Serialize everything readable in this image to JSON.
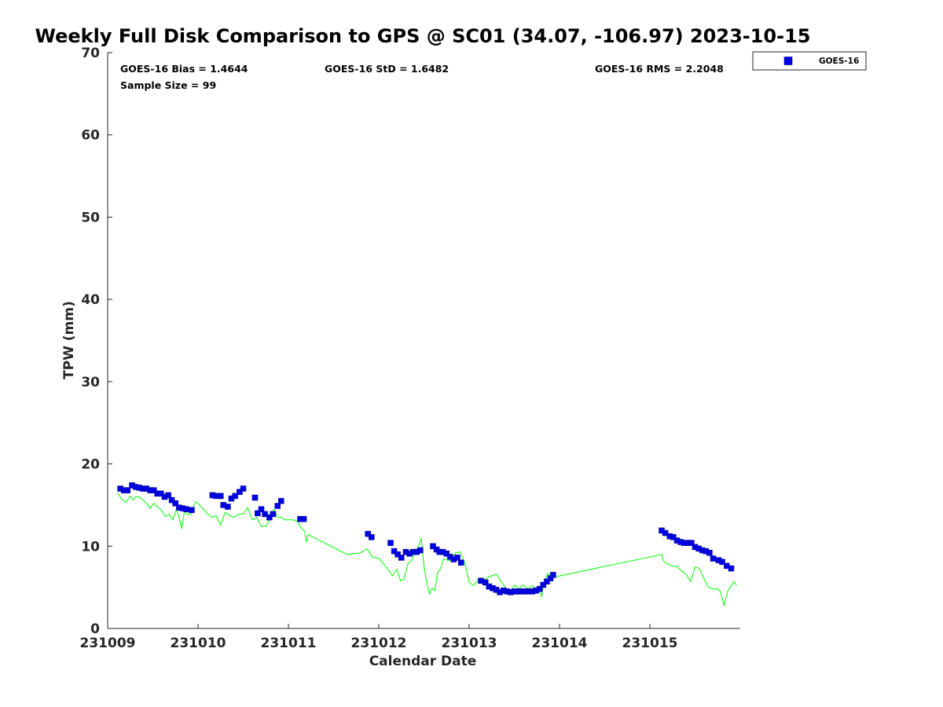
{
  "chart_data": {
    "type": "scatter",
    "title": "Weekly Full Disk Comparison to GPS @ SC01 (34.07, -106.97) 2023-10-15",
    "xlabel": "Calendar Date",
    "ylabel": "TPW (mm)",
    "xlim": [
      231009,
      231016
    ],
    "ylim": [
      0,
      70
    ],
    "x_ticks": [
      231009,
      231010,
      231011,
      231012,
      231013,
      231014,
      231015
    ],
    "x_tick_labels": [
      "231009",
      "231010",
      "231011",
      "231012",
      "231013",
      "231014",
      "231015"
    ],
    "y_ticks": [
      0,
      10,
      20,
      30,
      40,
      50,
      60,
      70
    ],
    "y_tick_labels": [
      "0",
      "10",
      "20",
      "30",
      "40",
      "50",
      "60",
      "70"
    ],
    "grid": false,
    "legend_position": "top-right-outside",
    "stats": {
      "bias": "GOES-16 Bias = 1.4644",
      "std": "GOES-16 StD = 1.6482",
      "rms": "GOES-16 RMS = 2.2048",
      "sample": "Sample Size = 99"
    },
    "series": [
      {
        "name": "GOES-16",
        "marker": "square",
        "color": "#0000e6",
        "x": [
          231009.14,
          231009.18,
          231009.22,
          231009.27,
          231009.31,
          231009.35,
          231009.39,
          231009.43,
          231009.47,
          231009.51,
          231009.55,
          231009.59,
          231009.63,
          231009.67,
          231009.71,
          231009.75,
          231009.79,
          231009.83,
          231009.87,
          231009.93,
          231010.16,
          231010.2,
          231010.25,
          231010.28,
          231010.33,
          231010.37,
          231010.41,
          231010.46,
          231010.5,
          231010.63,
          231010.66,
          231010.7,
          231010.74,
          231010.79,
          231010.83,
          231010.88,
          231010.92,
          231011.13,
          231011.17,
          231011.88,
          231011.92,
          231012.13,
          231012.17,
          231012.21,
          231012.25,
          231012.3,
          231012.34,
          231012.38,
          231012.42,
          231012.46,
          231012.6,
          231012.64,
          231012.67,
          231012.71,
          231012.75,
          231012.79,
          231012.83,
          231012.87,
          231012.91,
          231013.13,
          231013.18,
          231013.22,
          231013.26,
          231013.3,
          231013.34,
          231013.38,
          231013.42,
          231013.46,
          231013.5,
          231013.54,
          231013.58,
          231013.62,
          231013.66,
          231013.7,
          231013.74,
          231013.78,
          231013.82,
          231013.86,
          231013.9,
          231013.93,
          231015.13,
          231015.17,
          231015.22,
          231015.26,
          231015.3,
          231015.34,
          231015.38,
          231015.42,
          231015.46,
          231015.5,
          231015.54,
          231015.58,
          231015.62,
          231015.66,
          231015.7,
          231015.76,
          231015.8,
          231015.85,
          231015.9
        ],
        "y": [
          17.0,
          16.8,
          16.8,
          17.4,
          17.2,
          17.1,
          17.0,
          17.0,
          16.8,
          16.8,
          16.4,
          16.4,
          16.0,
          16.2,
          15.6,
          15.2,
          14.7,
          14.6,
          14.5,
          14.4,
          16.2,
          16.1,
          16.1,
          15.0,
          14.8,
          15.8,
          16.1,
          16.6,
          17.0,
          15.9,
          14.0,
          14.5,
          13.9,
          13.5,
          13.9,
          14.9,
          15.5,
          13.3,
          13.3,
          11.5,
          11.1,
          10.4,
          9.4,
          9.0,
          8.6,
          9.3,
          9.1,
          9.3,
          9.3,
          9.5,
          10.0,
          9.6,
          9.3,
          9.3,
          9.1,
          8.7,
          8.4,
          8.6,
          8.0,
          5.8,
          5.6,
          5.1,
          4.9,
          4.7,
          4.4,
          4.6,
          4.5,
          4.4,
          4.5,
          4.5,
          4.5,
          4.5,
          4.5,
          4.5,
          4.6,
          4.8,
          5.3,
          5.7,
          6.1,
          6.5,
          11.9,
          11.6,
          11.2,
          11.1,
          10.7,
          10.5,
          10.4,
          10.4,
          10.4,
          9.9,
          9.7,
          9.5,
          9.4,
          9.2,
          8.5,
          8.3,
          8.1,
          7.6,
          7.3
        ]
      },
      {
        "name": "",
        "color": "#00ff00",
        "style": "line",
        "x": [
          231009.11,
          231009.15,
          231009.2,
          231009.25,
          231009.28,
          231009.31,
          231009.35,
          231009.39,
          231009.43,
          231009.47,
          231009.51,
          231009.55,
          231009.6,
          231009.64,
          231009.68,
          231009.72,
          231009.76,
          231009.79,
          231009.82,
          231009.85,
          231009.89,
          231009.93,
          231009.97,
          231010.0,
          231010.05,
          231010.1,
          231010.15,
          231010.2,
          231010.25,
          231010.3,
          231010.35,
          231010.4,
          231010.45,
          231010.5,
          231010.55,
          231010.6,
          231010.65,
          231010.7,
          231010.75,
          231010.8,
          231010.84,
          231010.88,
          231010.92,
          231010.96,
          231011.05,
          231011.1,
          231011.14,
          231011.18,
          231011.2,
          231011.22,
          231011.65,
          231011.8,
          231011.87,
          231011.93,
          231012.0,
          231012.05,
          231012.1,
          231012.15,
          231012.2,
          231012.24,
          231012.28,
          231012.32,
          231012.36,
          231012.4,
          231012.44,
          231012.47,
          231012.5,
          231012.53,
          231012.56,
          231012.59,
          231012.62,
          231012.65,
          231012.68,
          231012.72,
          231012.76,
          231012.8,
          231012.85,
          231012.9,
          231012.95,
          231013.0,
          231013.05,
          231013.1,
          231013.15,
          231013.2,
          231013.25,
          231013.3,
          231013.35,
          231013.4,
          231013.45,
          231013.5,
          231013.55,
          231013.6,
          231013.65,
          231013.7,
          231013.75,
          231013.78,
          231013.8,
          231013.83,
          231013.87,
          231013.92,
          231015.13,
          231015.15,
          231015.2,
          231015.25,
          231015.3,
          231015.35,
          231015.4,
          231015.45,
          231015.5,
          231015.55,
          231015.6,
          231015.65,
          231015.7,
          231015.75,
          231015.78,
          231015.82,
          231015.86,
          231015.9,
          231015.93,
          231015.96
        ],
        "y": [
          16.5,
          15.8,
          15.3,
          16.1,
          15.6,
          16.0,
          16.0,
          15.6,
          15.2,
          14.6,
          15.2,
          14.8,
          14.3,
          13.6,
          13.9,
          13.2,
          14.5,
          13.5,
          12.1,
          14.3,
          13.8,
          14.0,
          15.4,
          15.2,
          14.6,
          14.0,
          13.5,
          13.7,
          12.6,
          14.1,
          13.7,
          13.5,
          13.9,
          13.9,
          14.7,
          13.2,
          13.5,
          12.4,
          12.4,
          13.4,
          14.5,
          13.5,
          13.5,
          13.2,
          13.2,
          13.0,
          12.2,
          11.8,
          10.5,
          11.4,
          9.0,
          9.2,
          9.7,
          8.7,
          8.5,
          7.9,
          7.2,
          6.4,
          7.2,
          5.8,
          6.0,
          7.8,
          8.2,
          9.2,
          10.0,
          11.0,
          7.6,
          5.6,
          4.2,
          4.9,
          4.6,
          6.8,
          7.2,
          8.5,
          8.3,
          8.2,
          9.2,
          9.3,
          8.0,
          5.6,
          5.2,
          5.9,
          5.7,
          6.2,
          6.4,
          6.6,
          5.8,
          5.0,
          4.3,
          5.3,
          4.8,
          5.3,
          4.8,
          5.2,
          4.6,
          4.9,
          3.8,
          5.6,
          6.7,
          6.2,
          9.0,
          8.2,
          7.8,
          7.6,
          7.5,
          7.0,
          6.6,
          5.7,
          7.5,
          7.3,
          6.0,
          5.0,
          4.8,
          4.8,
          4.5,
          2.8,
          4.5,
          5.2,
          5.7,
          5.2
        ]
      }
    ]
  }
}
